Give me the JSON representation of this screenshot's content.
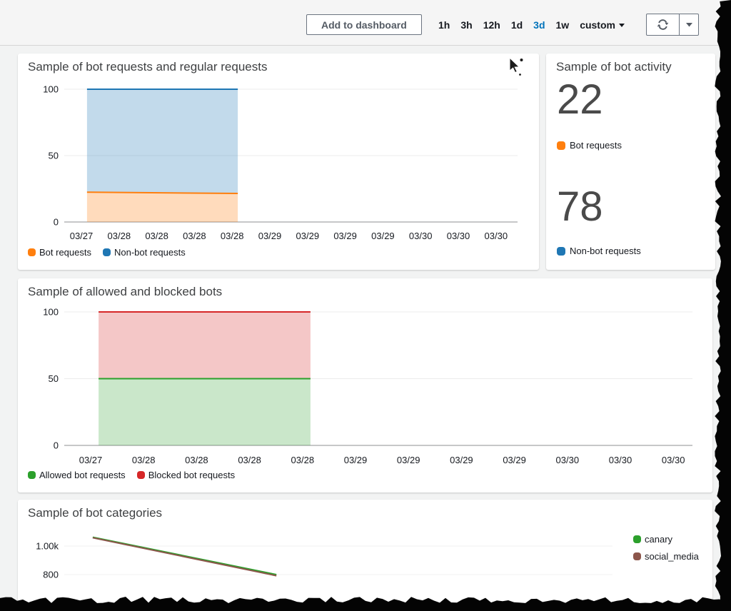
{
  "topbar": {
    "add_to_dashboard_label": "Add to dashboard",
    "time_ranges": [
      {
        "label": "1h",
        "active": false
      },
      {
        "label": "3h",
        "active": false
      },
      {
        "label": "12h",
        "active": false
      },
      {
        "label": "1d",
        "active": false
      },
      {
        "label": "3d",
        "active": true
      },
      {
        "label": "1w",
        "active": false
      },
      {
        "label": "custom",
        "active": false,
        "has_caret": true
      }
    ],
    "active_color": "#0073bb",
    "icons": {
      "refresh": "circular-arrows-refresh",
      "dropdown": "caret-down",
      "custom_caret": "caret-down"
    }
  },
  "cursor_icon": "mouse-pointer-with-dots",
  "cards": {
    "bot_requests": {
      "title": "Sample of bot requests and regular requests",
      "legend": [
        {
          "label": "Bot requests",
          "color": "#ff7f0e"
        },
        {
          "label": "Non-bot requests",
          "color": "#1f77b4"
        }
      ]
    },
    "bot_activity": {
      "title": "Sample of bot activity",
      "metrics": [
        {
          "value": "22",
          "label": "Bot requests",
          "color": "#ff7f0e"
        },
        {
          "value": "78",
          "label": "Non-bot requests",
          "color": "#1f77b4"
        }
      ]
    },
    "allowed_blocked": {
      "title": "Sample of allowed and blocked bots",
      "legend": [
        {
          "label": "Allowed bot requests",
          "color": "#2ca02c"
        },
        {
          "label": "Blocked bot requests",
          "color": "#d62728"
        }
      ]
    },
    "bot_categories": {
      "title": "Sample of bot categories",
      "legend": [
        {
          "label": "canary",
          "color": "#2ca02c"
        },
        {
          "label": "social_media",
          "color": "#8c564b"
        }
      ]
    }
  },
  "chart_data": [
    {
      "id": "chart1",
      "type": "area",
      "stacked": true,
      "title": "Sample of bot requests and regular requests",
      "x_unit": "tick-index",
      "x_tick_labels": [
        "03/27",
        "03/28",
        "03/28",
        "03/28",
        "03/28",
        "03/29",
        "03/29",
        "03/29",
        "03/29",
        "03/30",
        "03/30",
        "03/30"
      ],
      "ylim": [
        0,
        100
      ],
      "y_ticks": [
        {
          "label": "0",
          "value": 0
        },
        {
          "label": "50",
          "value": 50
        },
        {
          "label": "100",
          "value": 100
        }
      ],
      "legend_position": "bottom-left",
      "grid": true,
      "series": [
        {
          "name": "Bot requests",
          "color": "#ff7f0e",
          "fill_alpha": 0.28,
          "points": [
            [
              0.15,
              22.5
            ],
            [
              4.15,
              21.5
            ]
          ]
        },
        {
          "name": "Non-bot requests",
          "color": "#1f77b4",
          "fill_alpha": 0.27,
          "stacked_on": "Bot requests",
          "points": [
            [
              0.15,
              100
            ],
            [
              4.15,
              100
            ]
          ]
        }
      ]
    },
    {
      "id": "chart2",
      "type": "area",
      "stacked": true,
      "title": "Sample of allowed and blocked bots",
      "x_unit": "tick-index",
      "x_tick_labels": [
        "03/27",
        "03/28",
        "03/28",
        "03/28",
        "03/28",
        "03/29",
        "03/29",
        "03/29",
        "03/29",
        "03/30",
        "03/30",
        "03/30"
      ],
      "ylim": [
        0,
        100
      ],
      "y_ticks": [
        {
          "label": "0",
          "value": 0
        },
        {
          "label": "50",
          "value": 50
        },
        {
          "label": "100",
          "value": 100
        }
      ],
      "legend_position": "bottom-left",
      "grid": true,
      "series": [
        {
          "name": "Allowed bot requests",
          "color": "#2ca02c",
          "fill_alpha": 0.25,
          "points": [
            [
              0.15,
              50
            ],
            [
              4.15,
              50
            ]
          ]
        },
        {
          "name": "Blocked bot requests",
          "color": "#d62728",
          "fill_alpha": 0.26,
          "stacked_on": "Allowed bot requests",
          "points": [
            [
              0.15,
              100
            ],
            [
              4.15,
              100
            ]
          ]
        }
      ]
    },
    {
      "id": "chart3",
      "type": "line",
      "title": "Sample of bot categories",
      "x_unit": "fraction-of-plot-width",
      "y_ticks": [
        {
          "label": "1.00k",
          "value": 1000
        },
        {
          "label": "800",
          "value": 800
        }
      ],
      "legend_position": "right",
      "grid": true,
      "series": [
        {
          "name": "canary",
          "color": "#2ca02c",
          "points": [
            [
              0.052,
              1062
            ],
            [
              0.387,
              800
            ]
          ]
        },
        {
          "name": "social_media",
          "color": "#8c564b",
          "points": [
            [
              0.052,
              1058
            ],
            [
              0.387,
              792
            ]
          ]
        }
      ]
    }
  ]
}
